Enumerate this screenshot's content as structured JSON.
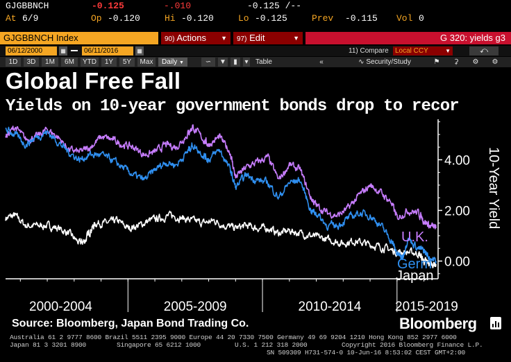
{
  "quote": {
    "ticker": "GJGBBNCH",
    "last": "-0.125",
    "change": "-.010",
    "bid_ask": "-0.125 /--",
    "at_label": "At",
    "at_value": "6/9",
    "op_label": "Op",
    "op_value": "-0.120",
    "hi_label": "Hi",
    "hi_value": "-0.120",
    "lo_label": "Lo",
    "lo_value": "-0.125",
    "prev_label": "Prev",
    "prev_value": "-0.115",
    "vol_label": "Vol",
    "vol_value": "0"
  },
  "toolbar": {
    "security": "GJGBBNCH Index",
    "actions_num": "90",
    "actions_label": "Actions",
    "edit_num": "97",
    "edit_label": "Edit",
    "page_code": "G 320: yields g3",
    "start_date": "06/12/2000",
    "end_date": "06/11/2016",
    "compare_num": "11)",
    "compare_label": "Compare",
    "currency": "Local CCY",
    "ranges": [
      "1D",
      "3D",
      "1M",
      "6M",
      "YTD",
      "1Y",
      "5Y",
      "Max"
    ],
    "period": "Daily",
    "table_label": "Table",
    "security_study": "Security/Study"
  },
  "colors": {
    "uk": "#c77dff",
    "germany": "#2f8ff0",
    "japan": "#ffffff",
    "accent": "#f5a623",
    "dark_red": "#8b0000",
    "brand_red": "#c8102e"
  },
  "chart_data": {
    "type": "line",
    "title": "Global Free Fall",
    "subtitle": "Yields on 10-year government bonds drop to recor",
    "ylabel": "10-Year Yield",
    "ylim": [
      -0.7,
      5.6
    ],
    "yticks": [
      4.0,
      2.0,
      0.0
    ],
    "ytick_labels": [
      "4.00",
      "2.00",
      "0.00"
    ],
    "xlim": [
      2000.45,
      2016.45
    ],
    "x_periods": [
      {
        "label": "2000-2004",
        "center": 2002.5
      },
      {
        "label": "2005-2009",
        "center": 2007.5
      },
      {
        "label": "2010-2014",
        "center": 2012.5
      },
      {
        "label": "2015-2019",
        "center": 2016.1
      }
    ],
    "x_separators": [
      2005.0,
      2010.0,
      2015.0
    ],
    "series": [
      {
        "name": "U.K.",
        "label": "U.K.",
        "x": [
          2000.45,
          2000.8,
          2001.2,
          2001.6,
          2002.0,
          2002.4,
          2002.8,
          2003.2,
          2003.6,
          2004.0,
          2004.4,
          2004.8,
          2005.2,
          2005.6,
          2006.0,
          2006.4,
          2006.8,
          2007.2,
          2007.4,
          2007.8,
          2008.0,
          2008.4,
          2008.8,
          2009.0,
          2009.4,
          2009.8,
          2010.2,
          2010.6,
          2011.0,
          2011.4,
          2011.8,
          2012.0,
          2012.4,
          2012.8,
          2013.2,
          2013.6,
          2014.0,
          2014.4,
          2014.8,
          2015.0,
          2015.4,
          2015.8,
          2016.0,
          2016.2,
          2016.45
        ],
        "y": [
          4.9,
          5.3,
          4.8,
          4.9,
          5.2,
          4.9,
          4.4,
          4.3,
          4.5,
          4.9,
          4.8,
          4.6,
          4.5,
          4.2,
          4.3,
          4.6,
          4.5,
          5.0,
          5.3,
          4.8,
          4.6,
          4.9,
          4.3,
          3.3,
          3.7,
          3.9,
          4.1,
          3.2,
          3.8,
          3.6,
          2.5,
          2.2,
          1.9,
          1.8,
          2.1,
          2.6,
          3.0,
          2.7,
          2.3,
          1.7,
          2.0,
          1.9,
          1.6,
          1.4,
          1.3
        ]
      },
      {
        "name": "Germany",
        "label": "Germ",
        "x": [
          2000.45,
          2000.8,
          2001.2,
          2001.6,
          2002.0,
          2002.4,
          2002.8,
          2003.2,
          2003.6,
          2004.0,
          2004.4,
          2004.8,
          2005.2,
          2005.6,
          2006.0,
          2006.4,
          2006.8,
          2007.2,
          2007.4,
          2007.8,
          2008.0,
          2008.4,
          2008.8,
          2009.0,
          2009.4,
          2009.8,
          2010.2,
          2010.6,
          2011.0,
          2011.4,
          2011.8,
          2012.0,
          2012.4,
          2012.8,
          2013.2,
          2013.6,
          2014.0,
          2014.4,
          2014.8,
          2015.0,
          2015.2,
          2015.4,
          2015.8,
          2016.0,
          2016.2,
          2016.45
        ],
        "y": [
          5.2,
          5.0,
          4.6,
          4.9,
          5.1,
          4.7,
          4.3,
          4.0,
          4.2,
          4.2,
          4.0,
          3.7,
          3.4,
          3.2,
          3.6,
          3.9,
          3.8,
          4.3,
          4.6,
          4.2,
          4.0,
          4.4,
          3.6,
          2.9,
          3.4,
          3.2,
          3.1,
          2.5,
          3.1,
          3.2,
          2.0,
          1.9,
          1.4,
          1.4,
          1.7,
          1.9,
          1.8,
          1.4,
          0.8,
          0.3,
          0.1,
          0.9,
          0.5,
          0.4,
          0.15,
          0.0
        ]
      },
      {
        "name": "Japan",
        "label": "Japan",
        "x": [
          2000.45,
          2000.8,
          2001.2,
          2001.6,
          2002.0,
          2002.4,
          2002.8,
          2003.2,
          2003.4,
          2003.6,
          2003.8,
          2004.2,
          2004.6,
          2005.0,
          2005.4,
          2005.8,
          2006.2,
          2006.6,
          2007.0,
          2007.4,
          2007.8,
          2008.2,
          2008.6,
          2009.0,
          2009.4,
          2009.8,
          2010.2,
          2010.6,
          2011.0,
          2011.4,
          2011.8,
          2012.2,
          2012.6,
          2013.0,
          2013.4,
          2013.8,
          2014.2,
          2014.6,
          2015.0,
          2015.4,
          2015.8,
          2016.0,
          2016.2,
          2016.45
        ],
        "y": [
          1.7,
          1.8,
          1.4,
          1.4,
          1.4,
          1.3,
          1.1,
          0.7,
          0.8,
          1.2,
          1.5,
          1.5,
          1.6,
          1.3,
          1.4,
          1.6,
          1.7,
          1.8,
          1.7,
          1.6,
          1.5,
          1.6,
          1.4,
          1.3,
          1.4,
          1.3,
          1.3,
          1.1,
          1.2,
          1.1,
          1.0,
          0.9,
          0.8,
          0.7,
          0.8,
          0.7,
          0.6,
          0.5,
          0.35,
          0.35,
          0.3,
          0.0,
          -0.1,
          -0.12
        ]
      }
    ]
  },
  "footer": {
    "source": "Source: Bloomberg, Japan Bond Trading Co.",
    "brand": "Bloomberg",
    "line1": "Australia 61 2 9777 8600 Brazil 5511 2395 9000 Europe 44 20 7330 7500 Germany 49 69 9204 1210 Hong Kong 852 2977 6000",
    "line2a": "Japan 81 3 3201 8900",
    "line2b": "Singapore 65 6212 1000",
    "line2c": "U.S. 1 212 318 2000",
    "line2d": "Copyright 2016 Bloomberg Finance L.P.",
    "line3": "SN 509309 H731-574-0 10-Jun-16  8:53:02 CEST GMT+2:00"
  }
}
